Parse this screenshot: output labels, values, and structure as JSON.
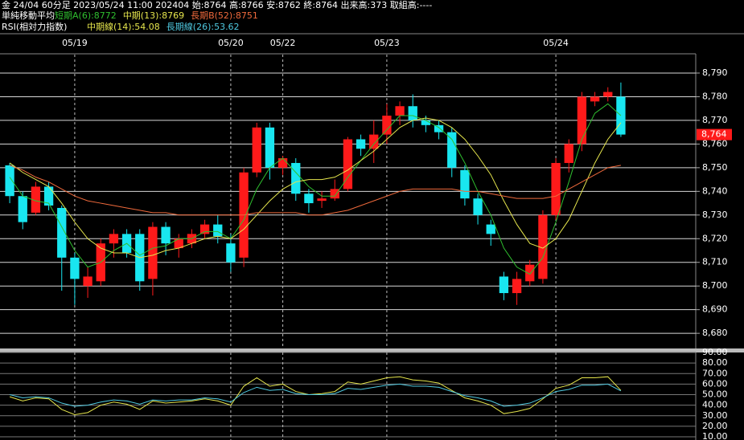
{
  "header": {
    "line1": "金 24/04 60分足 2023/05/24 11:00 202404 始:8764 高:8766 安:8762 終:8764 出来高:373 取組高:----",
    "ma_label": "単純移動平均",
    "rsi_label": "RSI(相対力指数)"
  },
  "chart_data": {
    "type": "candlestick",
    "categories": [
      null,
      null,
      null,
      null,
      null,
      "05/19",
      null,
      null,
      null,
      null,
      null,
      null,
      null,
      null,
      null,
      null,
      null,
      "05/20",
      null,
      null,
      null,
      "05/22",
      null,
      null,
      null,
      null,
      null,
      null,
      null,
      "05/23",
      null,
      null,
      null,
      null,
      null,
      null,
      null,
      null,
      null,
      null,
      null,
      null,
      "05/24",
      null,
      null,
      null,
      null,
      null
    ],
    "open": [
      8751,
      8738,
      8731,
      8742,
      8733,
      8712,
      8700,
      8702,
      8718,
      8722,
      8722,
      8703,
      8725,
      8716,
      8718,
      8722,
      8726,
      8718,
      8712,
      8748,
      8767,
      8750,
      8752,
      8739,
      8736,
      8737,
      8741,
      8762,
      8758,
      8764,
      8772,
      8776,
      8770,
      8768,
      8765,
      8749,
      8737,
      8726,
      8704,
      8697,
      8702,
      8703,
      8730,
      8752,
      8760,
      8778,
      8780,
      8780
    ],
    "high": [
      8752,
      8740,
      8744,
      8744,
      8734,
      8714,
      8708,
      8720,
      8724,
      8724,
      8724,
      8727,
      8727,
      8722,
      8724,
      8728,
      8730,
      8722,
      8750,
      8769,
      8769,
      8755,
      8754,
      8741,
      8740,
      8745,
      8763,
      8764,
      8770,
      8777,
      8778,
      8781,
      8772,
      8770,
      8767,
      8751,
      8739,
      8728,
      8706,
      8706,
      8711,
      8732,
      8754,
      8762,
      8782,
      8782,
      8784,
      8786
    ],
    "low": [
      8735,
      8724,
      8730,
      8732,
      8698,
      8692,
      8695,
      8700,
      8712,
      8712,
      8698,
      8696,
      8713,
      8712,
      8716,
      8720,
      8718,
      8706,
      8708,
      8746,
      8745,
      8747,
      8736,
      8731,
      8733,
      8736,
      8740,
      8755,
      8752,
      8760,
      8768,
      8767,
      8765,
      8762,
      8746,
      8734,
      8726,
      8717,
      8694,
      8692,
      8700,
      8701,
      8728,
      8748,
      8757,
      8776,
      8778,
      8763
    ],
    "close": [
      8738,
      8727,
      8742,
      8734,
      8712,
      8703,
      8704,
      8718,
      8722,
      8714,
      8702,
      8725,
      8718,
      8720,
      8722,
      8726,
      8721,
      8710,
      8748,
      8767,
      8750,
      8754,
      8739,
      8735,
      8737,
      8741,
      8762,
      8758,
      8764,
      8772,
      8776,
      8770,
      8768,
      8765,
      8750,
      8737,
      8730,
      8722,
      8697,
      8703,
      8709,
      8730,
      8752,
      8760,
      8780,
      8780,
      8782,
      8764
    ],
    "up_color": "#ff1a1a",
    "down_color": "#19e6f0",
    "ylim": [
      8673.6,
      8797.8
    ],
    "yticks": [
      {
        "value": 8680,
        "label": "8,680"
      },
      {
        "value": 8690,
        "label": "8,690"
      },
      {
        "value": 8700,
        "label": "8,700"
      },
      {
        "value": 8710,
        "label": "8,710"
      },
      {
        "value": 8720,
        "label": "8,720"
      },
      {
        "value": 8730,
        "label": "8,730"
      },
      {
        "value": 8740,
        "label": "8,740"
      },
      {
        "value": 8750,
        "label": "8,750"
      },
      {
        "value": 8760,
        "label": "8,760"
      },
      {
        "value": 8770,
        "label": "8,770"
      },
      {
        "value": 8780,
        "label": "8,780"
      },
      {
        "value": 8790,
        "label": "8,790"
      }
    ],
    "last_price": {
      "value": 8764,
      "label": "8,764"
    },
    "series": [
      {
        "name": "短期A(6):8772",
        "color": "#2fbf2f",
        "values": [
          8746,
          8738,
          8736,
          8735,
          8725,
          8715,
          8708,
          8710,
          8715,
          8718,
          8713,
          8716,
          8717,
          8720,
          8720,
          8723,
          8723,
          8720,
          8728,
          8741,
          8750,
          8754,
          8748,
          8742,
          8738,
          8738,
          8746,
          8753,
          8760,
          8766,
          8772,
          8772,
          8770,
          8767,
          8762,
          8752,
          8740,
          8730,
          8716,
          8708,
          8705,
          8712,
          8727,
          8744,
          8762,
          8773,
          8777,
          8772
        ]
      },
      {
        "name": "中期(13):8769",
        "color": "#e6e64d",
        "values": [
          8752,
          8748,
          8745,
          8742,
          8735,
          8727,
          8720,
          8716,
          8714,
          8714,
          8712,
          8713,
          8715,
          8716,
          8718,
          8720,
          8721,
          8720,
          8724,
          8730,
          8736,
          8741,
          8744,
          8745,
          8745,
          8746,
          8749,
          8753,
          8757,
          8762,
          8767,
          8770,
          8771,
          8770,
          8767,
          8762,
          8755,
          8747,
          8736,
          8726,
          8718,
          8716,
          8720,
          8728,
          8740,
          8752,
          8762,
          8769
        ]
      },
      {
        "name": "長期B(52):8751",
        "color": "#f06a3c",
        "values": [
          8751,
          8749,
          8746,
          8744,
          8741,
          8738,
          8736,
          8735,
          8734,
          8733,
          8732,
          8731,
          8731,
          8730,
          8730,
          8730,
          8730,
          8730,
          8730,
          8731,
          8731,
          8731,
          8731,
          8730,
          8730,
          8731,
          8732,
          8734,
          8736,
          8738,
          8740,
          8741,
          8741,
          8741,
          8741,
          8740,
          8740,
          8739,
          8738,
          8737,
          8737,
          8737,
          8738,
          8741,
          8744,
          8747,
          8750,
          8751
        ]
      }
    ],
    "rsi": {
      "ylim": [
        7,
        90
      ],
      "yticks": [
        {
          "value": 10,
          "label": "10.00"
        },
        {
          "value": 20,
          "label": "20.00"
        },
        {
          "value": 30,
          "label": "30.00"
        },
        {
          "value": 40,
          "label": "40.00"
        },
        {
          "value": 50,
          "label": "50.00"
        },
        {
          "value": 60,
          "label": "60.00"
        },
        {
          "value": 70,
          "label": "70.00"
        },
        {
          "value": 80,
          "label": "80.00"
        },
        {
          "value": 90,
          "label": "90.00"
        }
      ],
      "series": [
        {
          "name": "中期線(14):54.08",
          "color": "#e6e64d",
          "values": [
            48,
            44,
            47,
            46,
            36,
            31,
            33,
            40,
            43,
            41,
            36,
            44,
            42,
            43,
            44,
            46,
            44,
            40,
            58,
            66,
            58,
            60,
            53,
            50,
            51,
            53,
            62,
            60,
            63,
            66,
            67,
            64,
            63,
            61,
            54,
            47,
            44,
            40,
            32,
            34,
            37,
            46,
            56,
            59,
            66,
            66,
            67,
            54.08
          ]
        },
        {
          "name": "長期線(26):53.62",
          "color": "#4fc9e0",
          "values": [
            50,
            47,
            48,
            47,
            42,
            39,
            40,
            43,
            45,
            44,
            41,
            45,
            44,
            45,
            45,
            47,
            46,
            43,
            52,
            57,
            54,
            55,
            51,
            50,
            50,
            51,
            56,
            55,
            57,
            59,
            60,
            58,
            58,
            57,
            53,
            49,
            47,
            44,
            39,
            40,
            42,
            47,
            53,
            55,
            59,
            59,
            60,
            53.62
          ]
        }
      ]
    }
  }
}
